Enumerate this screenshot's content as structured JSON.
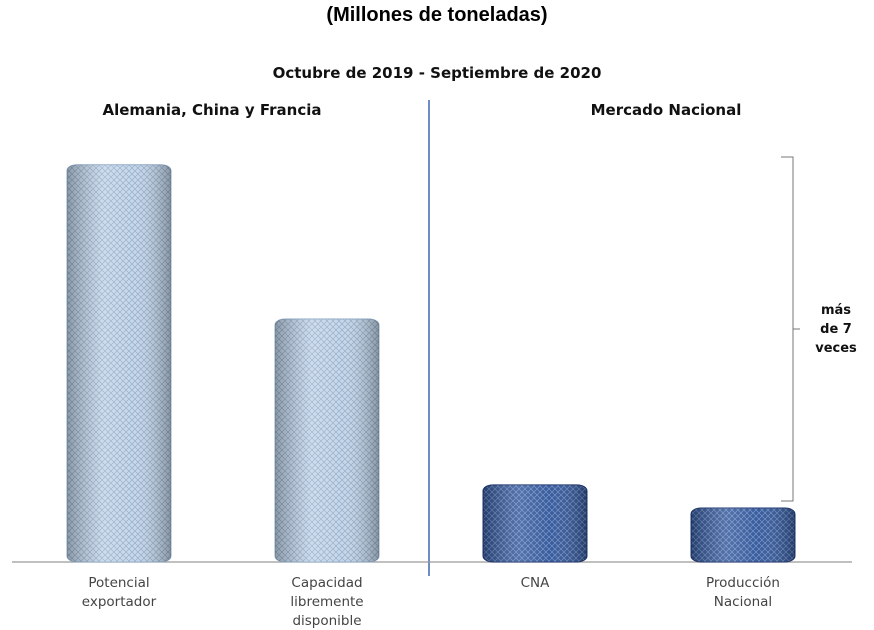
{
  "title": "(Millones de toneladas)",
  "chart_data": {
    "type": "bar",
    "subtitle": "Octubre de 2019 - Septiembre de 2020",
    "groups": [
      {
        "label": "Alemania, China y Francia",
        "categories": [
          0,
          1
        ]
      },
      {
        "label": "Mercado Nacional",
        "categories": [
          2,
          3
        ]
      }
    ],
    "categories": [
      [
        "Potencial",
        "exportador"
      ],
      [
        "Capacidad",
        "libremente",
        "disponible"
      ],
      [
        "CNA"
      ],
      [
        "Producción",
        "Nacional"
      ]
    ],
    "values": [
      10.3,
      6.3,
      2.0,
      1.4
    ],
    "ylim": [
      0,
      10.5
    ],
    "annotation": {
      "lines": [
        "más",
        "de 7",
        "veces"
      ]
    },
    "colors": {
      "light": "#b9cde3",
      "light_edge": "#8ea9c6",
      "dark": "#2c4f93",
      "dark_edge": "#1d3770",
      "divider": "#3b69b0"
    },
    "grid": false,
    "legend": "none"
  }
}
